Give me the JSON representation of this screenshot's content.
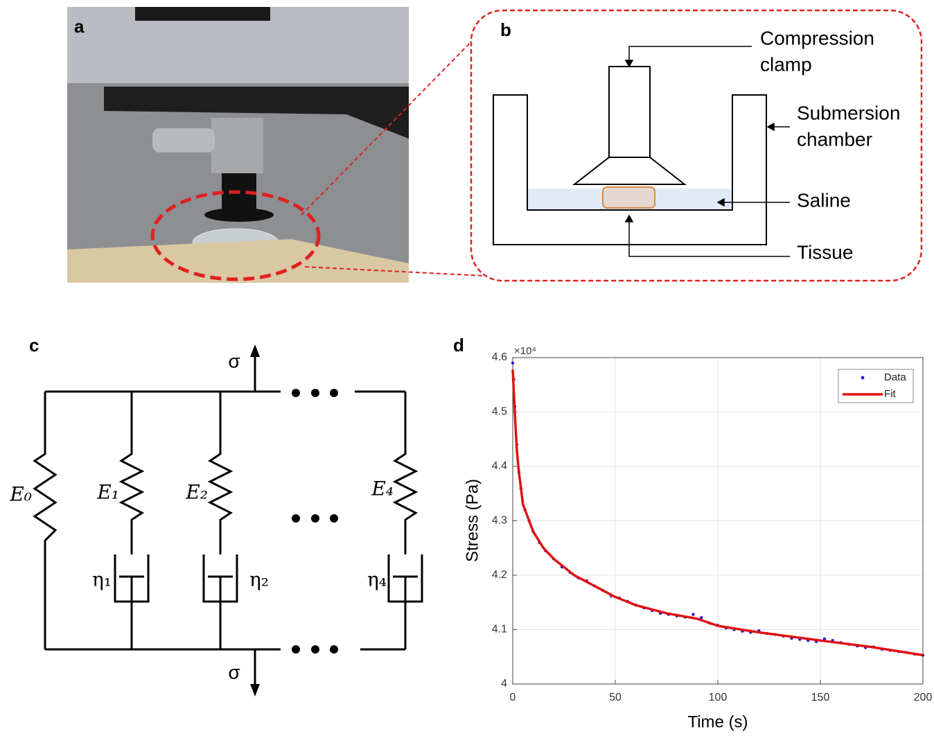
{
  "figure": {
    "a": {
      "label": "a"
    },
    "b": {
      "label": "b",
      "callouts": [
        [
          "Compression",
          "clamp"
        ],
        [
          "Submersion",
          "chamber"
        ],
        [
          "Saline"
        ],
        [
          "Tissue"
        ]
      ]
    },
    "c": {
      "label": "c",
      "stress_top": "σ",
      "stress_bottom": "σ",
      "springs": [
        "E₀",
        "E₁",
        "E₂",
        "E₄"
      ],
      "dashpots": [
        "η₁",
        "η₂",
        "η₄"
      ]
    }
  },
  "chart_data": {
    "type": "line",
    "label": "d",
    "x_label": "Time (s)",
    "y_label": "Stress (Pa)",
    "y_multiplier": "×10⁴",
    "xlim": [
      0,
      200
    ],
    "xticks": [
      0,
      50,
      100,
      150,
      200
    ],
    "ylim": [
      4,
      4.6
    ],
    "yticks": [
      4,
      4.1,
      4.2,
      4.3,
      4.4,
      4.5,
      4.6
    ],
    "grid": true,
    "legend": "upper right",
    "series": [
      {
        "name": "Data",
        "type": "scatter",
        "color": "#1f1fe0",
        "x": [
          0,
          0.5,
          1,
          2,
          3,
          4,
          6,
          8,
          10,
          13,
          16,
          20,
          24,
          28,
          32,
          36,
          40,
          44,
          48,
          52,
          56,
          60,
          64,
          68,
          72,
          76,
          80,
          84,
          88,
          92,
          96,
          100,
          104,
          108,
          112,
          116,
          120,
          124,
          128,
          132,
          136,
          140,
          144,
          148,
          152,
          156,
          160,
          164,
          168,
          172,
          176,
          180,
          184,
          188,
          192,
          196,
          200
        ],
        "values": [
          4.59,
          4.56,
          4.51,
          4.44,
          4.39,
          4.36,
          4.32,
          4.3,
          4.28,
          4.26,
          4.245,
          4.23,
          4.215,
          4.205,
          4.195,
          4.19,
          4.18,
          4.172,
          4.162,
          4.158,
          4.152,
          4.145,
          4.14,
          4.135,
          4.13,
          4.128,
          4.125,
          4.123,
          4.128,
          4.122,
          4.112,
          4.108,
          4.103,
          4.1,
          4.097,
          4.095,
          4.098,
          4.093,
          4.091,
          4.088,
          4.084,
          4.082,
          4.08,
          4.078,
          4.083,
          4.08,
          4.076,
          4.073,
          4.07,
          4.067,
          4.068,
          4.064,
          4.062,
          4.06,
          4.058,
          4.055,
          4.053
        ]
      },
      {
        "name": "Fit",
        "type": "line",
        "color": "#e01010",
        "x": [
          0,
          1,
          2,
          3,
          5,
          10,
          15,
          20,
          30,
          40,
          50,
          60,
          75,
          90,
          100,
          120,
          150,
          175,
          200
        ],
        "values": [
          4.578,
          4.5,
          4.43,
          4.39,
          4.33,
          4.28,
          4.25,
          4.23,
          4.2,
          4.18,
          4.16,
          4.145,
          4.13,
          4.12,
          4.107,
          4.095,
          4.08,
          4.068,
          4.053
        ]
      }
    ]
  }
}
